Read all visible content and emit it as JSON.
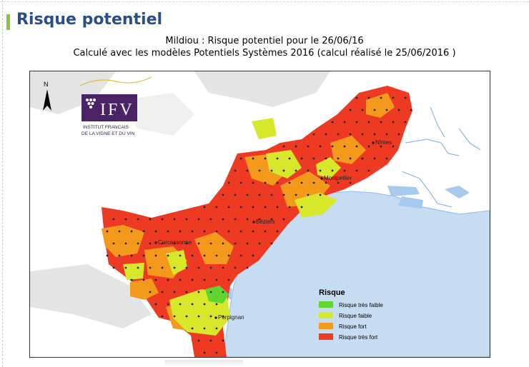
{
  "page": {
    "section_title": "Risque potentiel"
  },
  "map": {
    "title_line1": "Mildiou : Risque potentiel pour le 26/06/16",
    "title_line2": "Calculé avec les modèles Potentiels Systèmes 2016 (calcul réalisé le 25/06/2016 )",
    "north_label": "N",
    "cities": [
      {
        "name": "Nîmes"
      },
      {
        "name": "Montpellier"
      },
      {
        "name": "Béziers"
      },
      {
        "name": "Carcassonne"
      },
      {
        "name": "Perpignan"
      }
    ],
    "legend": {
      "title": "Risque",
      "items": [
        {
          "label": "Risque très faible",
          "color": "#5ed62e"
        },
        {
          "label": "Risque faible",
          "color": "#d7e82a"
        },
        {
          "label": "Risque fort",
          "color": "#f39a1c"
        },
        {
          "label": "Risque très fort",
          "color": "#ee3a22"
        }
      ]
    },
    "colors": {
      "sea": "#c6dcf3",
      "river": "#8fb8e6",
      "land_bg": "#ffffff",
      "relief": "#d9d9d9"
    }
  },
  "logo": {
    "acronym": "IFV",
    "line1": "INSTITUT FRANCAIS",
    "line2": "DE LA VIGNE ET DU VIN",
    "color": "#4a2266"
  }
}
